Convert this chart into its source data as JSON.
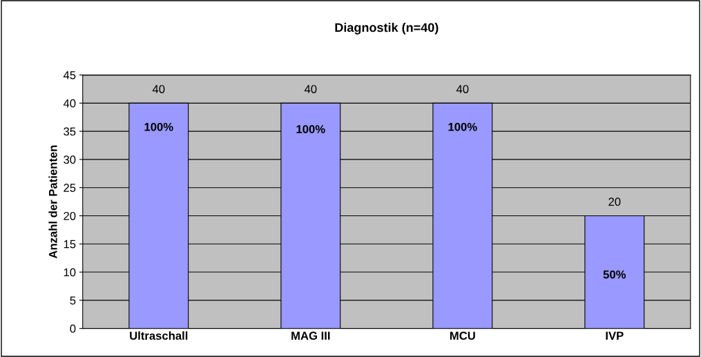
{
  "chart_data": {
    "type": "bar",
    "title": "Diagnostik (n=40)",
    "ylabel": "Anzahl der Patienten",
    "categories": [
      "Ultraschall",
      "MAG III",
      "MCU",
      "IVP"
    ],
    "values": [
      40,
      40,
      40,
      20
    ],
    "color": "#9999ff",
    "data_labels": true,
    "ylim": [
      0,
      45
    ],
    "yticks": [
      0,
      5,
      10,
      15,
      20,
      25,
      30,
      35,
      40,
      45
    ],
    "grid": "y",
    "annotations": [
      "100%",
      "100%",
      "100%",
      "50%"
    ]
  }
}
